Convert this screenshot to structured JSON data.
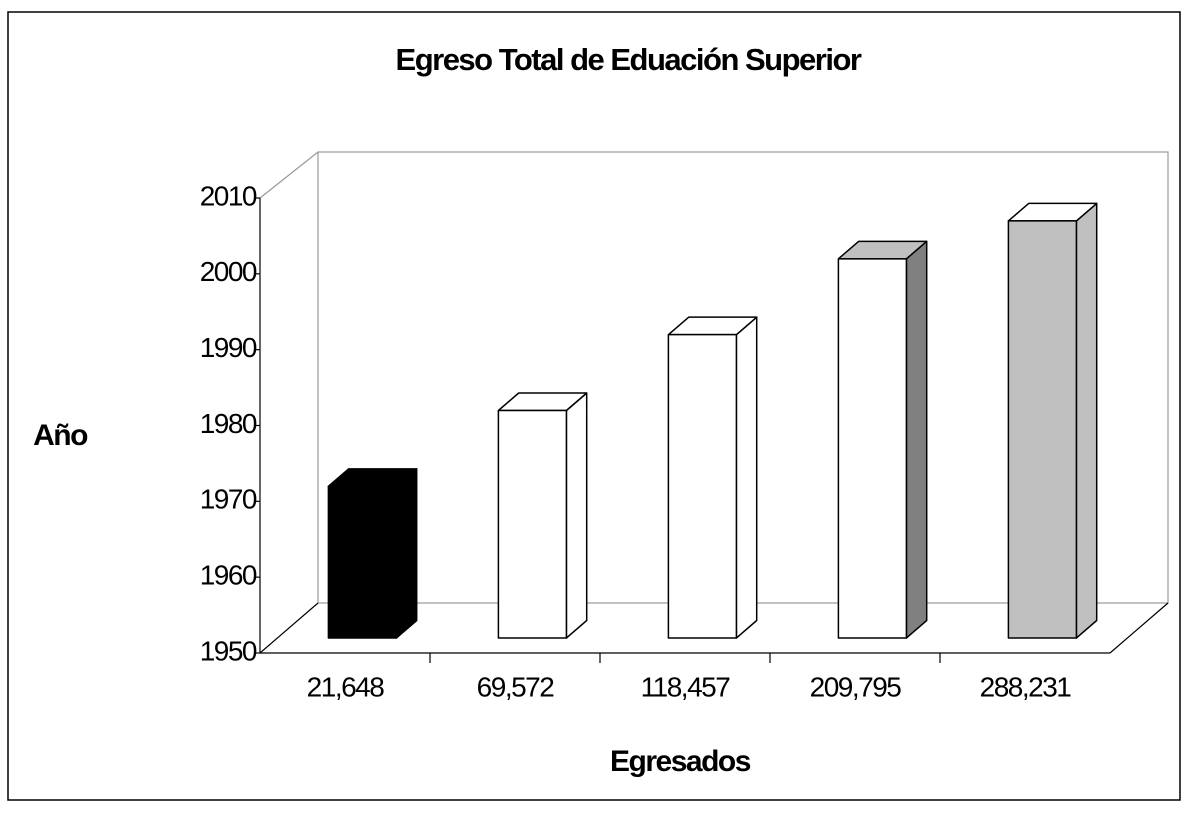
{
  "chart_data": {
    "type": "bar3d",
    "title": "Egreso Total de Eduación Superior",
    "x_label": "Egresados",
    "y_label": "Año",
    "categories": [
      "21,648",
      "69,572",
      "118,457",
      "209,795",
      "288,231"
    ],
    "values": [
      1970,
      1980,
      1990,
      2000,
      2005
    ],
    "colors": [
      {
        "front": "#000000",
        "side": "#000000",
        "top": "#000000"
      },
      {
        "front": "#ffffff",
        "side": "#ffffff",
        "top": "#ffffff"
      },
      {
        "front": "#ffffff",
        "side": "#ffffff",
        "top": "#ffffff"
      },
      {
        "front": "#ffffff",
        "side": "#808080",
        "top": "#c0c0c0"
      },
      {
        "front": "#c0c0c0",
        "side": "#c0c0c0",
        "top": "#ffffff"
      }
    ],
    "ylim": [
      1950,
      2010
    ],
    "yticks": [
      1950,
      1960,
      1970,
      1980,
      1990,
      2000,
      2010
    ],
    "grid": false
  }
}
